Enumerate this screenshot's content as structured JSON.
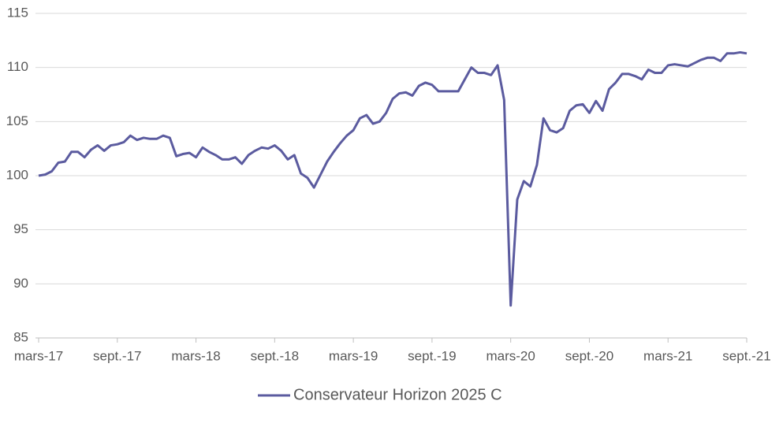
{
  "chart_data": {
    "type": "line",
    "categories": [
      "mars-17",
      null,
      null,
      null,
      null,
      null,
      null,
      null,
      null,
      null,
      null,
      null,
      "sept.-17",
      null,
      null,
      null,
      null,
      null,
      null,
      null,
      null,
      null,
      null,
      null,
      "mars-18",
      null,
      null,
      null,
      null,
      null,
      null,
      null,
      null,
      null,
      null,
      null,
      "sept.-18",
      null,
      null,
      null,
      null,
      null,
      null,
      null,
      null,
      null,
      null,
      null,
      "mars-19",
      null,
      null,
      null,
      null,
      null,
      null,
      null,
      null,
      null,
      null,
      null,
      "sept.-19",
      null,
      null,
      null,
      null,
      null,
      null,
      null,
      null,
      null,
      null,
      null,
      "mars-20",
      null,
      null,
      null,
      null,
      null,
      null,
      null,
      null,
      null,
      null,
      null,
      "sept.-20",
      null,
      null,
      null,
      null,
      null,
      null,
      null,
      null,
      null,
      null,
      null,
      "mars-21",
      null,
      null,
      null,
      null,
      null,
      null,
      null,
      null,
      null,
      null,
      null,
      "sept.-21"
    ],
    "series": [
      {
        "name": "Conservateur Horizon 2025 C",
        "color": "#5b5b9f",
        "values": [
          100.0,
          100.1,
          100.4,
          101.2,
          101.3,
          102.2,
          102.2,
          101.7,
          102.4,
          102.8,
          102.3,
          102.8,
          102.9,
          103.1,
          103.7,
          103.3,
          103.5,
          103.4,
          103.4,
          103.7,
          103.5,
          101.8,
          102.0,
          102.1,
          101.7,
          102.6,
          102.2,
          101.9,
          101.5,
          101.5,
          101.7,
          101.1,
          101.9,
          102.3,
          102.6,
          102.5,
          102.8,
          102.3,
          101.5,
          101.9,
          100.2,
          99.8,
          98.9,
          100.1,
          101.3,
          102.2,
          103.0,
          103.7,
          104.2,
          105.3,
          105.6,
          104.8,
          105.0,
          105.8,
          107.1,
          107.6,
          107.7,
          107.4,
          108.3,
          108.6,
          108.4,
          107.8,
          107.8,
          107.8,
          107.8,
          108.9,
          110.0,
          109.5,
          109.5,
          109.3,
          110.2,
          107.0,
          88.0,
          97.8,
          99.5,
          99.0,
          101.0,
          105.3,
          104.2,
          104.0,
          104.4,
          106.0,
          106.5,
          106.6,
          105.8,
          106.9,
          106.0,
          108.0,
          108.6,
          109.4,
          109.4,
          109.2,
          108.9,
          109.8,
          109.5,
          109.5,
          110.2,
          110.3,
          110.2,
          110.1,
          110.4,
          110.7,
          110.9,
          110.9,
          110.6,
          111.3,
          111.3,
          111.4,
          111.3
        ]
      }
    ],
    "ylim": [
      85,
      115
    ],
    "yticks": [
      85,
      90,
      95,
      100,
      105,
      110,
      115
    ],
    "grid": true,
    "legend": "bottom"
  }
}
